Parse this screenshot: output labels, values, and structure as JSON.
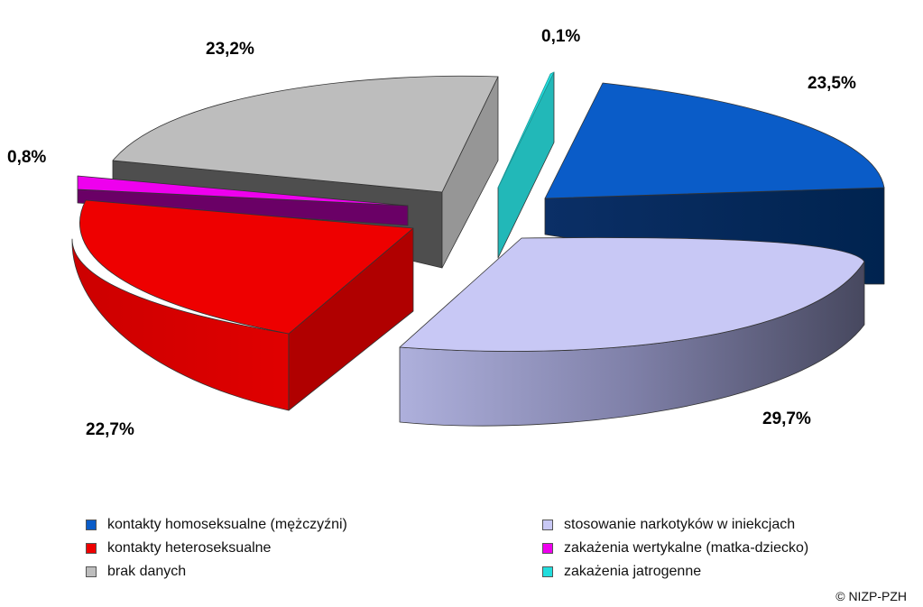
{
  "chart_data": {
    "type": "pie",
    "style": "3d-exploded",
    "series": [
      {
        "name": "kontakty homoseksualne (mężczyźni)",
        "value": 23.5,
        "label": "23,5%",
        "color": "#0a5cc8"
      },
      {
        "name": "stosowanie narkotyków w iniekcjach",
        "value": 29.7,
        "label": "29,7%",
        "color": "#c8c8f5"
      },
      {
        "name": "kontakty heteroseksualne",
        "value": 22.7,
        "label": "22,7%",
        "color": "#ee0000"
      },
      {
        "name": "zakażenia wertykalne (matka-dziecko)",
        "value": 0.8,
        "label": "0,8%",
        "color": "#ee00ee"
      },
      {
        "name": "brak danych",
        "value": 23.2,
        "label": "23,2%",
        "color": "#bdbdbd"
      },
      {
        "name": "zakażenia jatrogenne",
        "value": 0.1,
        "label": "0,1%",
        "color": "#22dddd"
      }
    ],
    "legend": {
      "position": "bottom",
      "columns": [
        [
          "kontakty homoseksualne (mężczyźni)",
          "kontakty heteroseksualne",
          "brak danych"
        ],
        [
          "stosowanie narkotyków w iniekcjach",
          "zakażenia wertykalne (matka-dziecko)",
          "zakażenia jatrogenne"
        ]
      ]
    }
  },
  "copyright": "© NIZP-PZH"
}
